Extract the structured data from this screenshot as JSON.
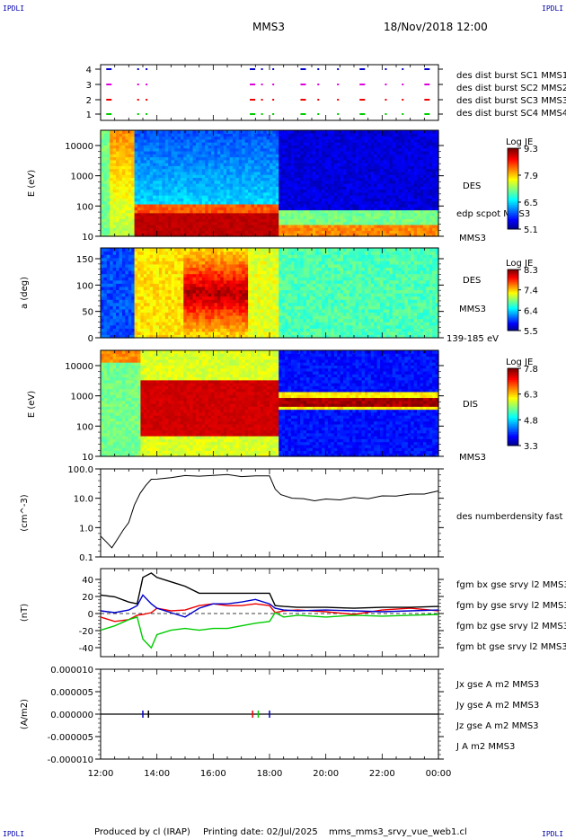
{
  "header": {
    "corner_left": "IPDLI",
    "corner_right": "IPDLI",
    "spacecraft": "MMS3",
    "datetime": "18/Nov/2018 12:00"
  },
  "footer": {
    "produced": "Produced by cl (IRAP)",
    "printing": "Printing date: 02/Jul/2025",
    "file": "mms_mms3_srvy_vue_web1.cl",
    "corner_left": "IPDLI",
    "corner_right": "IPDLI"
  },
  "colors": {
    "blue": "#0000cc",
    "magenta": "#dd00dd",
    "red": "#ee0000",
    "green": "#00cc00",
    "black": "#000000"
  },
  "chart_data": [
    {
      "type": "scatter",
      "name": "burst availability",
      "yticks": [
        "1",
        "2",
        "3",
        "4"
      ],
      "legend": [
        {
          "label": "des dist burst SC1 MMS1",
          "color": "#0000cc"
        },
        {
          "label": "des dist burst SC2 MMS2",
          "color": "#dd00dd"
        },
        {
          "label": "des dist burst SC3 MMS3",
          "color": "#ee0000"
        },
        {
          "label": "des dist burst SC4 MMS4",
          "color": "#00cc00"
        }
      ]
    },
    {
      "type": "heatmap",
      "ylabel": "E (eV)",
      "yticks": [
        "10",
        "100",
        "1000",
        "10000"
      ],
      "side": [
        "DES",
        "edp scpot MMS3",
        "MMS3"
      ],
      "colorbar": {
        "title": "Log JE",
        "ticks": [
          "9.3",
          "7.9",
          "6.5",
          "5.1"
        ]
      }
    },
    {
      "type": "heatmap",
      "ylabel": "a (deg)",
      "yticks": [
        "0",
        "50",
        "100",
        "150"
      ],
      "side": [
        "DES",
        "MMS3",
        "139-185 eV"
      ],
      "colorbar": {
        "title": "Log JE",
        "ticks": [
          "8.3",
          "7.4",
          "6.4",
          "5.5"
        ]
      }
    },
    {
      "type": "heatmap",
      "ylabel": "E (eV)",
      "yticks": [
        "10",
        "100",
        "1000",
        "10000"
      ],
      "side": [
        "DIS",
        "MMS3"
      ],
      "colorbar": {
        "title": "Log JE",
        "ticks": [
          "7.8",
          "6.3",
          "4.8",
          "3.3"
        ]
      }
    },
    {
      "type": "line",
      "ylabel": "(cm^-3)",
      "yticks": [
        "0.1",
        "1.0",
        "10.0",
        "100.0"
      ],
      "ylim": [
        0.1,
        100
      ],
      "legend": [
        {
          "label": "des numberdensity fast M",
          "color": "#000000"
        }
      ],
      "x_hours": [
        12.0,
        12.2,
        12.4,
        12.6,
        12.8,
        13.0,
        13.2,
        13.4,
        13.6,
        13.8,
        14.0,
        14.5,
        15.0,
        15.5,
        16.0,
        16.5,
        17.0,
        17.5,
        18.0,
        18.2,
        18.4,
        18.8,
        19.2,
        19.6,
        20.0,
        20.5,
        21.0,
        21.5,
        22.0,
        22.5,
        23.0,
        23.5,
        24.0
      ],
      "values": [
        0.5,
        0.3,
        0.2,
        0.4,
        0.8,
        1.5,
        6.0,
        15.0,
        30.0,
        40.0,
        45.0,
        55.0,
        60.0,
        62.0,
        60.0,
        58.0,
        60.0,
        62.0,
        60.0,
        22.0,
        12.0,
        11.0,
        10.0,
        9.0,
        9.0,
        9.5,
        10.0,
        10.5,
        11.0,
        12.0,
        13.0,
        14.0,
        16.0
      ]
    },
    {
      "type": "line",
      "ylabel": "(nT)",
      "yticks": [
        "-40",
        "-20",
        "0",
        "20",
        "40"
      ],
      "ylim": [
        -50,
        50
      ],
      "x_hours": [
        12.0,
        12.5,
        13.0,
        13.3,
        13.5,
        13.8,
        14.0,
        14.5,
        15.0,
        15.5,
        16.0,
        16.5,
        17.0,
        17.5,
        18.0,
        18.2,
        18.5,
        19.0,
        20.0,
        21.0,
        22.0,
        23.0,
        24.0
      ],
      "series": [
        {
          "name": "fgm bx gse srvy l2 MMS3",
          "color": "#ee0000",
          "values": [
            -5,
            -10,
            -8,
            -3,
            -2,
            0,
            5,
            2,
            3,
            8,
            10,
            8,
            8,
            10,
            8,
            0,
            2,
            3,
            1,
            -2,
            3,
            5,
            2
          ]
        },
        {
          "name": "fgm by gse srvy l2 MMS3",
          "color": "#00cc00",
          "values": [
            -20,
            -15,
            -8,
            -5,
            -30,
            -40,
            -25,
            -20,
            -18,
            -20,
            -18,
            -18,
            -15,
            -12,
            -10,
            0,
            -5,
            -3,
            -5,
            -3,
            -4,
            -3,
            -2
          ]
        },
        {
          "name": "fgm bz gse srvy l2 MMS3",
          "color": "#0000cc",
          "values": [
            2,
            0,
            3,
            8,
            20,
            10,
            5,
            0,
            -5,
            5,
            10,
            10,
            12,
            15,
            10,
            5,
            3,
            2,
            3,
            2,
            1,
            2,
            3
          ]
        },
        {
          "name": "fgm bt gse srvy l2 MMS3",
          "color": "#000000",
          "values": [
            20,
            18,
            12,
            10,
            40,
            45,
            40,
            35,
            30,
            22,
            22,
            22,
            22,
            22,
            22,
            8,
            7,
            6,
            6,
            5,
            6,
            6,
            7
          ]
        }
      ]
    },
    {
      "type": "line",
      "ylabel": "(A/m2)",
      "yticks": [
        "-0.000010",
        "-0.000005",
        "0.000000",
        "0.000005",
        "0.000010"
      ],
      "ylim": [
        -1e-05,
        1e-05
      ],
      "series": [
        {
          "name": "Jx gse A m2 MMS3",
          "color": "#ee0000"
        },
        {
          "name": "Jy gse A m2 MMS3",
          "color": "#00cc00"
        },
        {
          "name": "Jz gse A m2 MMS3",
          "color": "#0000cc"
        },
        {
          "name": "J A m2 MMS3",
          "color": "#000000"
        }
      ]
    }
  ],
  "xaxis": {
    "ticks": [
      "12:00",
      "14:00",
      "16:00",
      "18:00",
      "20:00",
      "22:00",
      "00:00"
    ],
    "tick_hours": [
      12,
      14,
      16,
      18,
      20,
      22,
      24
    ],
    "xlim": [
      12,
      24
    ]
  }
}
